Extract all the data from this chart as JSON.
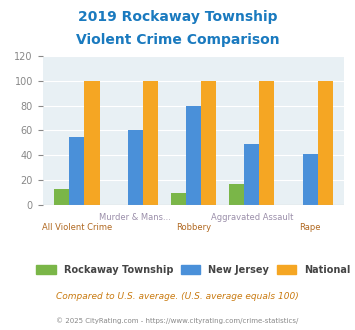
{
  "title_line1": "2019 Rockaway Township",
  "title_line2": "Violent Crime Comparison",
  "title_color": "#1a7abf",
  "categories": [
    "All Violent Crime",
    "Murder & Mans...",
    "Robbery",
    "Aggravated Assault",
    "Rape"
  ],
  "series": {
    "Rockaway Township": [
      13,
      0,
      9,
      17,
      0
    ],
    "New Jersey": [
      55,
      60,
      80,
      49,
      41
    ],
    "National": [
      100,
      100,
      100,
      100,
      100
    ]
  },
  "colors": {
    "Rockaway Township": "#7ab648",
    "New Jersey": "#4a90d9",
    "National": "#f5a623"
  },
  "ylim": [
    0,
    120
  ],
  "yticks": [
    0,
    20,
    40,
    60,
    80,
    100,
    120
  ],
  "plot_bg": "#e8f0f4",
  "fig_bg": "#ffffff",
  "footnote1": "Compared to U.S. average. (U.S. average equals 100)",
  "footnote2": "© 2025 CityRating.com - https://www.cityrating.com/crime-statistics/",
  "footnote1_color": "#c97a10",
  "footnote2_color": "#888888",
  "category_label_color_orange": "#b06820",
  "category_label_color_purple": "#9b8faa",
  "legend_label_color": "#444444",
  "tick_color": "#888888",
  "label_configs": [
    [
      "All Violent Crime",
      "bottom"
    ],
    [
      "Murder & Mans...",
      "top"
    ],
    [
      "Robbery",
      "bottom"
    ],
    [
      "Aggravated Assault",
      "top"
    ],
    [
      "Rape",
      "bottom"
    ]
  ]
}
